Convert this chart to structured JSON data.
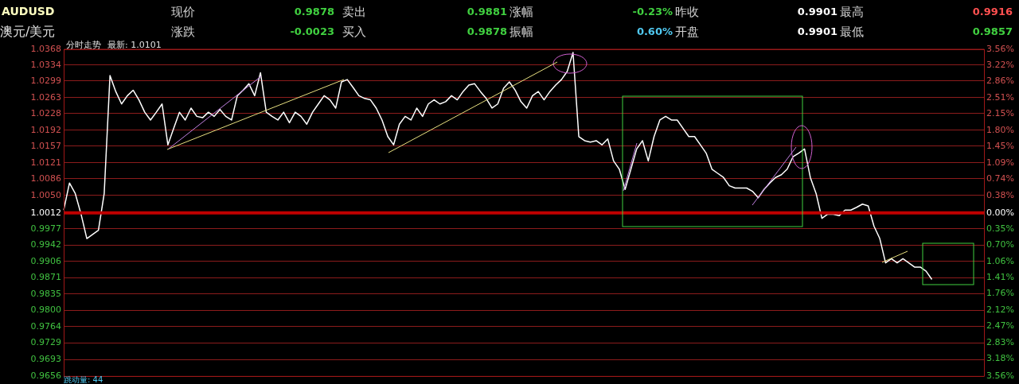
{
  "chart_data": {
    "type": "line",
    "title": "AUDUSD",
    "subtitle": "澳元/美元",
    "annotations": [
      "现价",
      "0.9878",
      "卖出",
      "0.9881",
      "涨幅",
      "-0.23%",
      "昨收",
      "0.9901",
      "最高",
      "0.9916",
      "涨跌",
      "-0.0023",
      "买入",
      "0.9878",
      "振幅",
      "0.60%",
      "开盘",
      "0.9901",
      "最低",
      "0.9857",
      "分时走势",
      "最新: 1.0101",
      "跳动量: 44"
    ],
    "categories": [
      null,
      null,
      null,
      null,
      null,
      null,
      null,
      null,
      null,
      null,
      null,
      null,
      null,
      null,
      null,
      null,
      null,
      null,
      null,
      null,
      null,
      null,
      null,
      null,
      null,
      null,
      null,
      null,
      null,
      null,
      null,
      null,
      null,
      null,
      null,
      null,
      null,
      null,
      null,
      null,
      null,
      null,
      null,
      null,
      null,
      null,
      null,
      null,
      null,
      null,
      null,
      null,
      null,
      null,
      null,
      null,
      null,
      null,
      null,
      null,
      null,
      null,
      null,
      null,
      null,
      null,
      null,
      null,
      null,
      null,
      null,
      null,
      null,
      null,
      null,
      null,
      null,
      null,
      null,
      null,
      null,
      null,
      null,
      null,
      null,
      null,
      null,
      null,
      null,
      null,
      null,
      null,
      null,
      null,
      null,
      null,
      null,
      null,
      null,
      null,
      null,
      null,
      null,
      null,
      null,
      null,
      null,
      null,
      null,
      null,
      null,
      null,
      null,
      null,
      null,
      null,
      null,
      null,
      null,
      null,
      null,
      null,
      null,
      null,
      null,
      null,
      null,
      null,
      null,
      null,
      null,
      null,
      null,
      null,
      null,
      null,
      null,
      null,
      null,
      null,
      null,
      null,
      null,
      null,
      null,
      null,
      null,
      null,
      null,
      null,
      null,
      null,
      null,
      null,
      null,
      null,
      null,
      null,
      null,
      null
    ],
    "series": [
      {
        "color": "#ffffff",
        "values": [
          1.0018,
          1.0077,
          1.0054,
          1.0009,
          0.9956,
          0.9965,
          0.9974,
          1.0054,
          1.0311,
          1.0276,
          1.0249,
          1.0267,
          1.0279,
          1.0258,
          1.0231,
          1.0214,
          1.0231,
          1.0249,
          1.016,
          1.0196,
          1.0231,
          1.0214,
          1.024,
          1.0222,
          1.0219,
          1.0231,
          1.0222,
          1.0237,
          1.0222,
          1.0214,
          1.0267,
          1.0279,
          1.0293,
          1.0267,
          1.0317,
          1.0231,
          1.0222,
          1.0214,
          1.0231,
          1.0208,
          1.0231,
          1.0222,
          1.0205,
          1.0231,
          1.0249,
          1.0267,
          1.0258,
          1.024,
          1.0297,
          1.0302,
          1.0285,
          1.0267,
          1.0261,
          1.0258,
          1.024,
          1.0214,
          1.0178,
          1.016,
          1.0205,
          1.0222,
          1.0214,
          1.024,
          1.0222,
          1.0249,
          1.0258,
          1.0249,
          1.0254,
          1.0267,
          1.0258,
          1.0276,
          1.029,
          1.0293,
          1.0276,
          1.0261,
          1.024,
          1.0249,
          1.0283,
          1.0297,
          1.0279,
          1.0254,
          1.024,
          1.0267,
          1.0276,
          1.0258,
          1.0276,
          1.029,
          1.0302,
          1.032,
          1.0361,
          1.0178,
          1.0169,
          1.0166,
          1.0169,
          1.016,
          1.0173,
          1.0125,
          1.0107,
          1.0063,
          1.0107,
          1.0151,
          1.0169,
          1.0125,
          1.0178,
          1.0214,
          1.0222,
          1.0214,
          1.0214,
          1.0196,
          1.0178,
          1.0178,
          1.016,
          1.0142,
          1.0107,
          1.0098,
          1.0089,
          1.0071,
          1.0066,
          1.0066,
          1.0066,
          1.0059,
          1.0045,
          1.0063,
          1.0077,
          1.0089,
          1.0095,
          1.0107,
          1.0134,
          1.0142,
          1.0151,
          1.0089,
          1.0054,
          1.0,
          1.0009,
          1.0009,
          1.0006,
          1.0018,
          1.0018,
          1.0024,
          1.0031,
          1.0027,
          0.9983,
          0.9956,
          0.9903,
          0.9912,
          0.9903,
          0.9912,
          0.9903,
          0.9894,
          0.9894,
          0.9885,
          0.9867,
          null,
          null,
          null,
          null,
          null,
          null,
          null,
          null,
          null
        ]
      }
    ],
    "ylim": [
      0.9656,
      1.0368
    ],
    "yticks": [
      1.0368,
      1.0334,
      1.0299,
      1.0263,
      1.0228,
      1.0192,
      1.0157,
      1.0121,
      1.0086,
      {
        "value": 1.005,
        "label": "1.0050"
      },
      1.0012,
      0.9977,
      0.9942,
      0.9906,
      0.9871,
      0.9835,
      {
        "value": 0.98,
        "label": "0.9800"
      },
      0.9764,
      0.9729,
      0.9693,
      0.9656
    ],
    "y2lim": [
      -3.56,
      3.56
    ],
    "y2ticks": [
      {
        "value": 3.56,
        "label": "3.56%"
      },
      {
        "value": 3.22,
        "label": "3.22%"
      },
      {
        "value": 2.86,
        "label": "2.86%"
      },
      {
        "value": 2.51,
        "label": "2.51%"
      },
      {
        "value": 2.15,
        "label": "2.15%"
      },
      {
        "value": 1.8,
        "label": "1.80%"
      },
      {
        "value": 1.45,
        "label": "1.45%"
      },
      {
        "value": 1.09,
        "label": "1.09%"
      },
      {
        "value": 0.74,
        "label": "0.74%"
      },
      {
        "value": 0.38,
        "label": "0.38%"
      },
      {
        "value": 0,
        "label": "0.00%"
      },
      {
        "value": -0.35,
        "label": "0.35%"
      },
      {
        "value": -0.7,
        "label": "0.70%"
      },
      {
        "value": -1.06,
        "label": "1.06%"
      },
      {
        "value": -1.41,
        "label": "1.41%"
      },
      {
        "value": -1.76,
        "label": "1.76%"
      },
      {
        "value": -2.12,
        "label": "2.12%"
      },
      {
        "value": -2.47,
        "label": "2.47%"
      },
      {
        "value": -2.83,
        "label": "2.83%"
      },
      {
        "value": -3.18,
        "label": "3.18%"
      },
      {
        "value": -3.56,
        "label": "3.56%"
      }
    ],
    "ref_lines": [
      {
        "axis": "y",
        "value": 1.0012,
        "color": "#c00000"
      }
    ],
    "grid": "y",
    "marker": "none",
    "line_style": "solid",
    "tick_labels": "y"
  }
}
